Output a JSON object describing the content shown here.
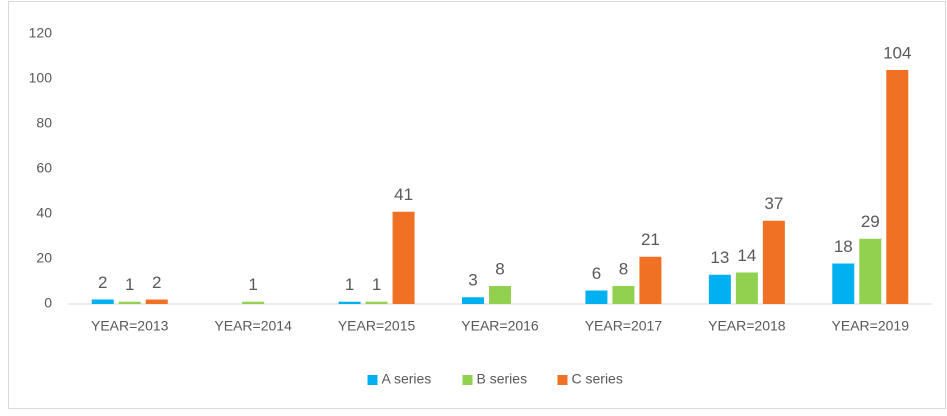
{
  "chart_data": {
    "type": "bar",
    "categories": [
      "YEAR=2013",
      "YEAR=2014",
      "YEAR=2015",
      "YEAR=2016",
      "YEAR=2017",
      "YEAR=2018",
      "YEAR=2019"
    ],
    "series": [
      {
        "name": "A series",
        "color": "#00b0f0",
        "values": [
          2,
          null,
          1,
          3,
          6,
          13,
          18
        ]
      },
      {
        "name": "B series",
        "color": "#92d050",
        "values": [
          1,
          1,
          1,
          8,
          8,
          14,
          29
        ]
      },
      {
        "name": "C series",
        "color": "#f07024",
        "values": [
          2,
          null,
          41,
          null,
          21,
          37,
          104
        ]
      }
    ],
    "ylim": [
      0,
      120
    ],
    "yticks": [
      0,
      20,
      40,
      60,
      80,
      100,
      120
    ],
    "grid": false,
    "legend": "bottom"
  }
}
